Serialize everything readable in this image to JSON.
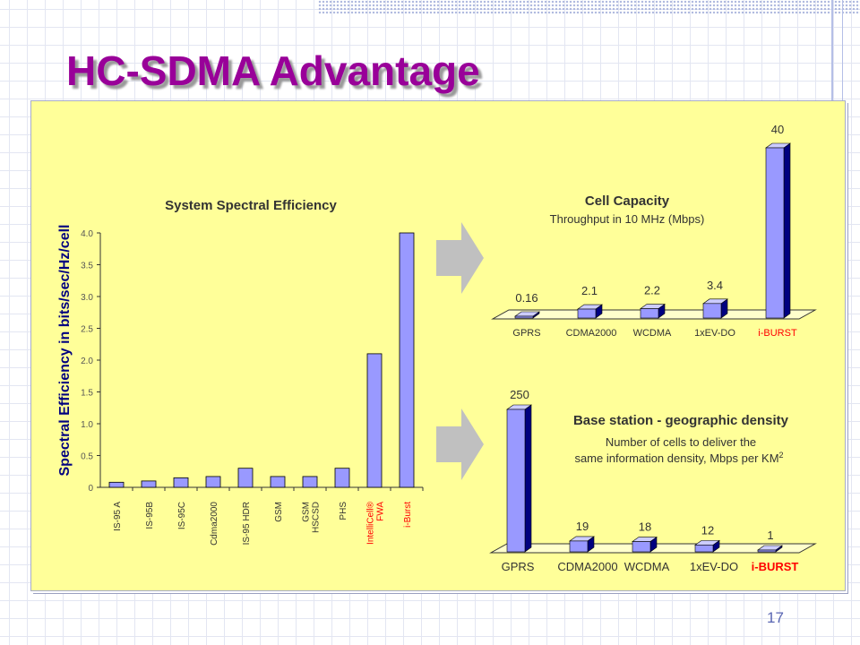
{
  "slide": {
    "title": "HC-SDMA Advantage",
    "page_number": "17"
  },
  "colors": {
    "title": "#990099",
    "panel": "#ffff99",
    "bar": "#9999ff",
    "bar_dark": "#000080",
    "highlight_text": "#ff0000",
    "arrow": "#c0c0c0"
  },
  "chart_data": [
    {
      "id": "spectral",
      "type": "bar",
      "title": "System Spectral Efficiency",
      "ylabel": "Spectral Efficiency in bits/sec/Hz/cell",
      "xlabel": "",
      "ylim": [
        0,
        4
      ],
      "yticks": [
        "0",
        "0.5",
        "1.0",
        "1.5",
        "2.0",
        "2.5",
        "3.0",
        "3.5",
        "4.0"
      ],
      "categories": [
        [
          "IS-95 A"
        ],
        [
          "IS-95B"
        ],
        [
          "IS-95C"
        ],
        [
          "Cdma2000"
        ],
        [
          "IS-95 HDR"
        ],
        [
          "GSM"
        ],
        [
          "GSM",
          "HSCSD"
        ],
        [
          "PHS"
        ],
        [
          "IntelliCell®",
          "FWA"
        ],
        [
          "i-Burst"
        ]
      ],
      "values": [
        0.08,
        0.1,
        0.15,
        0.17,
        0.3,
        0.17,
        0.17,
        0.3,
        2.1,
        4.0
      ],
      "highlight_categories": [
        8,
        9
      ]
    },
    {
      "id": "capacity",
      "type": "bar",
      "title": "Cell Capacity",
      "subtitle": "Throughput in 10 MHz (Mbps)",
      "categories": [
        "GPRS",
        "CDMA2000",
        "WCDMA",
        "1xEV-DO",
        "i-BURST"
      ],
      "values": [
        0.16,
        2.1,
        2.2,
        3.4,
        40
      ],
      "value_labels": [
        "0.16",
        "2.1",
        "2.2",
        "3.4",
        "40"
      ],
      "highlight_categories": [
        4
      ]
    },
    {
      "id": "density",
      "type": "bar",
      "title": "Base station - geographic density",
      "subtitle_lines": [
        "Number of cells to deliver the",
        "same information density, Mbps per KM"
      ],
      "subtitle_sup": "2",
      "categories": [
        "GPRS",
        "CDMA2000",
        "WCDMA",
        "1xEV-DO",
        "i-BURST"
      ],
      "values": [
        250,
        19,
        18,
        12,
        1
      ],
      "value_labels": [
        "250",
        "19",
        "18",
        "12",
        "1"
      ],
      "highlight_categories": [
        4
      ]
    }
  ]
}
